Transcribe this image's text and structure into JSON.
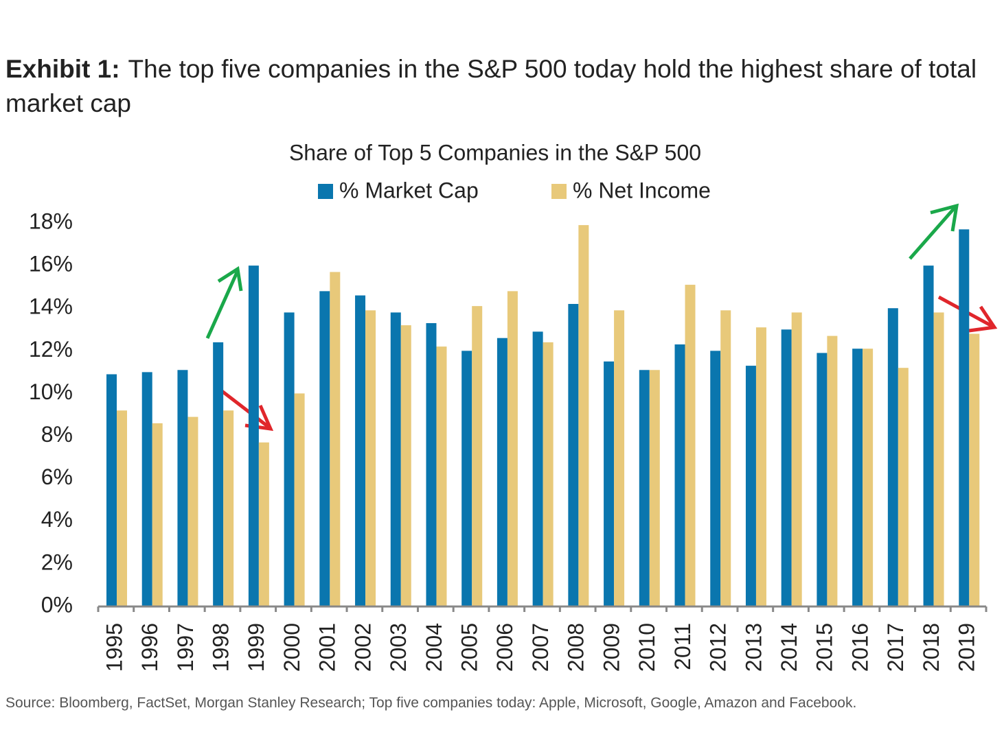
{
  "header": {
    "label": "Exhibit 1:",
    "title": "The top five companies in the S&P 500 today hold the highest share of total market cap"
  },
  "chart_data": {
    "type": "bar",
    "title": "Share of Top 5 Companies in the S&P 500",
    "categories": [
      "1995",
      "1996",
      "1997",
      "1998",
      "1999",
      "2000",
      "2001",
      "2002",
      "2003",
      "2004",
      "2005",
      "2006",
      "2007",
      "2008",
      "2009",
      "2010",
      "2011",
      "2012",
      "2013",
      "2014",
      "2015",
      "2016",
      "2017",
      "2018",
      "2019"
    ],
    "series": [
      {
        "name": "% Market Cap",
        "color": "#0a76ae",
        "values": [
          10.9,
          11.0,
          11.1,
          12.4,
          16.0,
          13.8,
          14.8,
          14.6,
          13.8,
          13.3,
          12.0,
          12.6,
          12.9,
          14.2,
          11.5,
          11.1,
          12.3,
          12.0,
          11.3,
          13.0,
          11.9,
          12.1,
          14.0,
          16.0,
          17.7
        ]
      },
      {
        "name": "% Net Income",
        "color": "#e8c97a",
        "values": [
          9.2,
          8.6,
          8.9,
          9.2,
          7.7,
          10.0,
          15.7,
          13.9,
          13.2,
          12.2,
          14.1,
          14.8,
          12.4,
          17.9,
          13.9,
          11.1,
          15.1,
          13.9,
          13.1,
          13.8,
          12.7,
          12.1,
          11.2,
          13.8,
          12.8
        ]
      }
    ],
    "ylim": [
      0,
      18
    ],
    "yticks": [
      {
        "value": 0,
        "label": "0%"
      },
      {
        "value": 2,
        "label": "2%"
      },
      {
        "value": 4,
        "label": "4%"
      },
      {
        "value": 6,
        "label": "6%"
      },
      {
        "value": 8,
        "label": "8%"
      },
      {
        "value": 10,
        "label": "10%"
      },
      {
        "value": 12,
        "label": "12%"
      },
      {
        "value": 14,
        "label": "14%"
      },
      {
        "value": 16,
        "label": "16%"
      },
      {
        "value": 18,
        "label": "18%"
      }
    ],
    "grid": false
  },
  "source": "Source: Bloomberg, FactSet, Morgan Stanley Research; Top five companies today: Apple, Microsoft, Google, Amazon and Facebook."
}
